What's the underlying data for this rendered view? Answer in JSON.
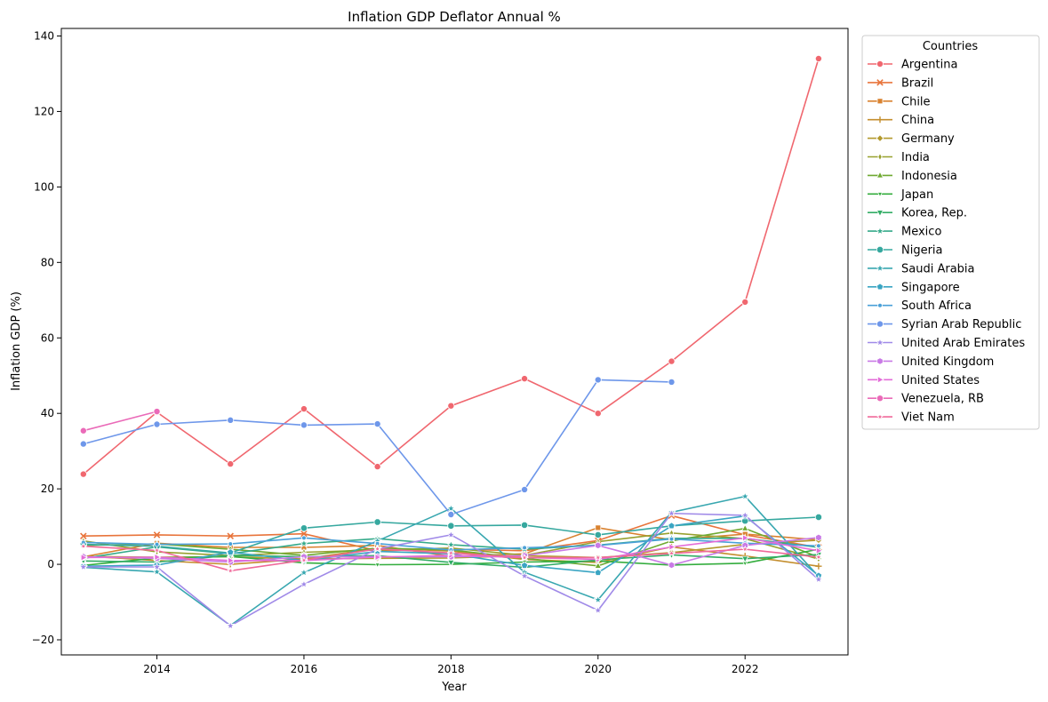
{
  "chart_data": {
    "type": "line",
    "title": "Inflation GDP Deflator Annual %",
    "xlabel": "Year",
    "ylabel": "Inflation GDP (%)",
    "xlim": [
      2012.7,
      2023.4
    ],
    "ylim": [
      -24,
      142
    ],
    "x_ticks": [
      2014,
      2016,
      2018,
      2020,
      2022
    ],
    "y_ticks": [
      -20,
      0,
      20,
      40,
      60,
      80,
      100,
      120,
      140
    ],
    "grid": false,
    "legend_title": "Countries",
    "legend_position": "outside-right",
    "x": [
      2013,
      2014,
      2015,
      2016,
      2017,
      2018,
      2019,
      2020,
      2021,
      2022,
      2023
    ],
    "series": [
      {
        "name": "Argentina",
        "color": "#f0676f",
        "marker": "circle",
        "values": [
          23.9,
          40.3,
          26.6,
          41.2,
          25.9,
          42.0,
          49.2,
          40.0,
          53.8,
          69.5,
          134.0
        ]
      },
      {
        "name": "Brazil",
        "color": "#e8743b",
        "marker": "x",
        "values": [
          7.5,
          7.8,
          7.5,
          8.1,
          3.6,
          4.0,
          3.6,
          6.3,
          12.9,
          7.8,
          4.5
        ]
      },
      {
        "name": "Chile",
        "color": "#d98230",
        "marker": "square",
        "values": [
          2.0,
          5.6,
          4.5,
          4.5,
          5.0,
          2.1,
          2.8,
          9.7,
          6.5,
          8.0,
          6.5
        ]
      },
      {
        "name": "China",
        "color": "#c48e2e",
        "marker": "plus",
        "values": [
          2.2,
          1.0,
          0.0,
          1.4,
          4.3,
          3.5,
          1.3,
          0.5,
          4.6,
          2.2,
          -0.5
        ]
      },
      {
        "name": "Germany",
        "color": "#b3992d",
        "marker": "diamond",
        "values": [
          2.1,
          1.9,
          2.0,
          1.4,
          1.6,
          1.7,
          2.3,
          1.8,
          3.1,
          5.3,
          6.4
        ]
      },
      {
        "name": "India",
        "color": "#98a12f",
        "marker": "thin_diamond",
        "values": [
          6.2,
          3.3,
          2.3,
          3.2,
          3.8,
          4.3,
          2.4,
          6.0,
          8.3,
          6.8,
          1.4
        ]
      },
      {
        "name": "Indonesia",
        "color": "#6fa931",
        "marker": "triangle-up",
        "values": [
          5.0,
          5.4,
          4.0,
          2.4,
          4.3,
          3.8,
          1.6,
          -0.4,
          6.2,
          9.5,
          1.9
        ]
      },
      {
        "name": "Japan",
        "color": "#34ad3e",
        "marker": "triangle-down-small",
        "values": [
          -0.3,
          1.7,
          2.1,
          0.4,
          -0.1,
          0.0,
          0.6,
          0.9,
          -0.2,
          0.3,
          4.0
        ]
      },
      {
        "name": "Korea, Rep.",
        "color": "#33ad66",
        "marker": "triangle-down",
        "values": [
          0.9,
          0.6,
          2.4,
          2.0,
          2.3,
          0.5,
          -0.8,
          1.2,
          2.5,
          1.5,
          2.6
        ]
      },
      {
        "name": "Mexico",
        "color": "#35aa8a",
        "marker": "star",
        "values": [
          1.6,
          4.6,
          2.8,
          5.5,
          6.8,
          5.2,
          4.0,
          5.1,
          6.9,
          6.9,
          4.5
        ]
      },
      {
        "name": "Nigeria",
        "color": "#36a89f",
        "marker": "octagon",
        "values": [
          5.3,
          4.8,
          3.0,
          9.6,
          11.2,
          10.2,
          10.4,
          7.8,
          10.2,
          11.5,
          12.5
        ]
      },
      {
        "name": "Saudi Arabia",
        "color": "#38a7b0",
        "marker": "star",
        "values": [
          -0.8,
          -2.0,
          -16.2,
          -2.2,
          6.2,
          14.8,
          -2.1,
          -9.4,
          13.8,
          18.0,
          -3.2
        ]
      },
      {
        "name": "Singapore",
        "color": "#3aa5c3",
        "marker": "pentagon",
        "values": [
          -0.5,
          -0.2,
          3.2,
          1.0,
          3.4,
          2.8,
          -0.3,
          -2.2,
          10.2,
          12.8,
          -3.0
        ]
      },
      {
        "name": "South Africa",
        "color": "#4aa0d8",
        "marker": "point",
        "values": [
          5.8,
          5.3,
          5.4,
          7.0,
          5.5,
          3.8,
          4.4,
          5.0,
          6.7,
          5.6,
          4.9
        ]
      },
      {
        "name": "Syrian Arab Republic",
        "color": "#6e97ea",
        "marker": "circle",
        "values": [
          31.9,
          37.1,
          38.2,
          36.9,
          37.2,
          13.2,
          19.8,
          48.9,
          48.3,
          null,
          null
        ]
      },
      {
        "name": "United Arab Emirates",
        "color": "#a08ae8",
        "marker": "star",
        "values": [
          -0.7,
          -0.7,
          -16.3,
          -5.3,
          4.1,
          7.8,
          -3.1,
          -12.2,
          13.5,
          13.0,
          -4.0
        ]
      },
      {
        "name": "United Kingdom",
        "color": "#c97ae6",
        "marker": "hexagon",
        "values": [
          2.0,
          1.6,
          0.6,
          2.0,
          2.0,
          2.0,
          2.3,
          5.0,
          -0.2,
          5.0,
          7.1
        ]
      },
      {
        "name": "United States",
        "color": "#e36cd8",
        "marker": "triangle-right",
        "values": [
          1.8,
          1.9,
          1.0,
          1.0,
          1.9,
          2.4,
          1.8,
          1.3,
          4.6,
          7.0,
          3.6
        ]
      },
      {
        "name": "Venezuela, RB",
        "color": "#ea6ab8",
        "marker": "circle",
        "values": [
          35.4,
          40.5,
          null,
          null,
          null,
          null,
          null,
          null,
          null,
          null,
          null
        ]
      },
      {
        "name": "Viet Nam",
        "color": "#f0699a",
        "marker": "star-small",
        "values": [
          4.8,
          3.7,
          -1.7,
          1.1,
          4.1,
          3.0,
          1.8,
          1.8,
          2.9,
          4.0,
          1.9
        ]
      }
    ]
  }
}
